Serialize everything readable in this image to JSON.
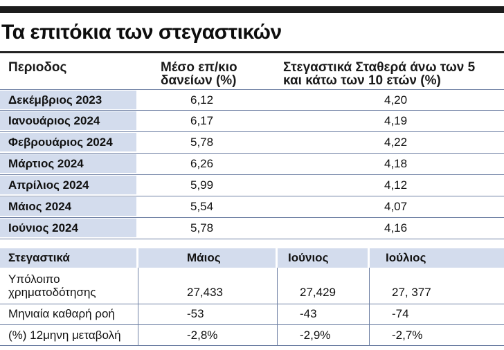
{
  "title": "Τα επιτόκια των στεγαστικών",
  "table1": {
    "headers": {
      "period": "Περιοδος",
      "avg_line1": "Μέσο επ/κιο",
      "avg_line2": "δανείων (%)",
      "fixed_line1": "Στεγαστικά Σταθερά άνω των 5",
      "fixed_line2": "και κάτω των 10 ετών (%)"
    },
    "rows": [
      {
        "period": "Δεκέμβριος 2023",
        "avg": "6,12",
        "fixed": "4,20"
      },
      {
        "period": "Ιανουάριος 2024",
        "avg": "6,17",
        "fixed": "4,19"
      },
      {
        "period": "Φεβρουάριος 2024",
        "avg": "5,78",
        "fixed": "4,22"
      },
      {
        "period": "Μάρτιος 2024",
        "avg": "6,26",
        "fixed": "4,18"
      },
      {
        "period": "Απρίλιος 2024",
        "avg": "5,99",
        "fixed": "4,12"
      },
      {
        "period": "Μάιος 2024",
        "avg": "5,54",
        "fixed": "4,07"
      },
      {
        "period": "Ιούνιος 2024",
        "avg": "5,78",
        "fixed": "4,16"
      }
    ]
  },
  "table2": {
    "headers": {
      "label": "Στεγαστικά",
      "may": "Μάιος",
      "june": "Ιούνιος",
      "july": "Ιούλιος"
    },
    "rows": [
      {
        "label_line1": "Υπόλοιπο",
        "label_line2": "χρηματοδότησης",
        "may": "27,433",
        "june": "27,429",
        "july": "27, 377"
      },
      {
        "label_line1": "Μηνιαία καθαρή ροή",
        "label_line2": "",
        "may": "-53",
        "june": "-43",
        "july": "-74"
      },
      {
        "label_line1": "(%) 12μηνη μεταβολή",
        "label_line2": "",
        "may": "-2,8%",
        "june": "-2,9%",
        "july": "-2,7%"
      }
    ]
  }
}
